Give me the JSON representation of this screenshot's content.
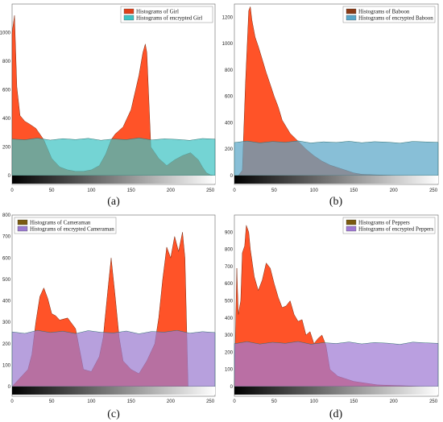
{
  "chart_data": [
    {
      "type": "area",
      "caption": "(a)",
      "xlim": [
        0,
        256
      ],
      "ylim": [
        0,
        1200
      ],
      "xticks": [
        0,
        50,
        100,
        150,
        200,
        250
      ],
      "yticks": [
        0,
        200,
        400,
        600,
        800,
        1000
      ],
      "legend_placement": "top-right",
      "series": [
        {
          "name": "Histograms of Girl",
          "color": "#ff4a1c",
          "x": [
            0,
            3,
            6,
            10,
            16,
            22,
            30,
            40,
            50,
            60,
            70,
            80,
            90,
            100,
            110,
            118,
            125,
            130,
            140,
            150,
            160,
            165,
            168,
            170,
            175,
            185,
            195,
            205,
            215,
            225,
            235,
            240,
            245,
            250,
            256
          ],
          "y": [
            1000,
            1120,
            620,
            420,
            380,
            360,
            330,
            250,
            120,
            60,
            40,
            30,
            30,
            40,
            70,
            150,
            250,
            290,
            340,
            460,
            700,
            860,
            920,
            860,
            200,
            120,
            70,
            110,
            140,
            160,
            110,
            60,
            20,
            5,
            0
          ]
        },
        {
          "name": "Histograms of encrypted Girl",
          "color": "#3ec4c4",
          "x": [
            0,
            16,
            32,
            48,
            64,
            80,
            96,
            112,
            128,
            144,
            160,
            176,
            192,
            208,
            224,
            240,
            256
          ],
          "y": [
            255,
            250,
            262,
            248,
            258,
            252,
            260,
            247,
            256,
            251,
            263,
            249,
            257,
            253,
            246,
            259,
            255
          ]
        }
      ]
    },
    {
      "type": "area",
      "caption": "(b)",
      "xlim": [
        0,
        256
      ],
      "ylim": [
        0,
        1300
      ],
      "xticks": [
        0,
        50,
        100,
        150,
        200,
        250
      ],
      "yticks": [
        0,
        200,
        400,
        600,
        800,
        1000,
        1200
      ],
      "legend_placement": "top-right",
      "series": [
        {
          "name": "Histograms of Baboon",
          "color": "#ff4a1c",
          "x": [
            0,
            5,
            10,
            14,
            18,
            20,
            22,
            26,
            30,
            35,
            40,
            45,
            50,
            55,
            60,
            70,
            80,
            90,
            100,
            110,
            120,
            130,
            140,
            150,
            160,
            180,
            200,
            220,
            240,
            256
          ],
          "y": [
            0,
            0,
            40,
            700,
            1250,
            1280,
            1180,
            1050,
            980,
            880,
            780,
            690,
            600,
            520,
            420,
            320,
            260,
            200,
            150,
            110,
            80,
            60,
            40,
            20,
            10,
            5,
            2,
            0,
            0,
            0
          ]
        },
        {
          "name": "Histograms of encrypted Baboon",
          "color": "#5aa6c8",
          "x": [
            0,
            16,
            32,
            48,
            64,
            80,
            96,
            112,
            128,
            144,
            160,
            176,
            192,
            208,
            224,
            240,
            256
          ],
          "y": [
            250,
            262,
            248,
            258,
            252,
            263,
            247,
            256,
            251,
            260,
            249,
            257,
            253,
            246,
            259,
            255,
            252
          ]
        }
      ]
    },
    {
      "type": "area",
      "caption": "(c)",
      "xlim": [
        0,
        256
      ],
      "ylim": [
        0,
        800
      ],
      "xticks": [
        0,
        50,
        100,
        150,
        200,
        250
      ],
      "yticks": [
        0,
        100,
        200,
        300,
        400,
        500,
        600,
        700,
        800
      ],
      "legend_placement": "top-left",
      "series": [
        {
          "name": "Histograms of Cameraman",
          "color": "#ff4a1c",
          "x": [
            0,
            10,
            20,
            25,
            30,
            35,
            40,
            45,
            50,
            55,
            60,
            70,
            80,
            90,
            100,
            110,
            115,
            120,
            125,
            130,
            135,
            140,
            150,
            160,
            170,
            180,
            185,
            190,
            195,
            200,
            205,
            210,
            215,
            218,
            222,
            230,
            245,
            256
          ],
          "y": [
            0,
            40,
            80,
            150,
            300,
            420,
            460,
            410,
            340,
            330,
            310,
            320,
            270,
            80,
            70,
            140,
            230,
            420,
            600,
            420,
            230,
            120,
            80,
            60,
            120,
            200,
            320,
            500,
            650,
            600,
            700,
            630,
            720,
            600,
            0,
            0,
            0,
            0
          ]
        },
        {
          "name": "Histograms of encrypted Cameraman",
          "color": "#9b7bd0",
          "x": [
            0,
            16,
            32,
            48,
            64,
            80,
            96,
            112,
            128,
            144,
            160,
            176,
            192,
            208,
            224,
            240,
            256
          ],
          "y": [
            255,
            248,
            262,
            252,
            258,
            247,
            261,
            253,
            250,
            259,
            246,
            257,
            254,
            262,
            249,
            256,
            252
          ]
        }
      ]
    },
    {
      "type": "area",
      "caption": "(d)",
      "xlim": [
        0,
        256
      ],
      "ylim": [
        0,
        1000
      ],
      "xticks": [
        0,
        50,
        100,
        150,
        200,
        250
      ],
      "yticks": [
        0,
        100,
        200,
        300,
        400,
        500,
        600,
        700,
        800,
        900
      ],
      "legend_placement": "top-right",
      "series": [
        {
          "name": "Histograms of Peppers",
          "color": "#ff4a1c",
          "x": [
            0,
            3,
            5,
            8,
            10,
            13,
            15,
            18,
            20,
            25,
            30,
            35,
            40,
            45,
            50,
            55,
            60,
            65,
            70,
            75,
            80,
            85,
            90,
            95,
            100,
            105,
            110,
            115,
            120,
            130,
            150,
            180,
            210,
            240,
            256
          ],
          "y": [
            0,
            690,
            420,
            500,
            780,
            820,
            940,
            900,
            800,
            640,
            560,
            620,
            720,
            690,
            600,
            520,
            460,
            470,
            500,
            420,
            380,
            390,
            300,
            320,
            250,
            280,
            300,
            240,
            100,
            60,
            30,
            10,
            5,
            0,
            0
          ]
        },
        {
          "name": "Histograms of encrypted Peppers",
          "color": "#a07ad4",
          "x": [
            0,
            16,
            32,
            48,
            64,
            80,
            96,
            112,
            128,
            144,
            160,
            176,
            192,
            208,
            224,
            240,
            256
          ],
          "y": [
            250,
            262,
            248,
            258,
            252,
            263,
            247,
            256,
            251,
            260,
            249,
            257,
            253,
            246,
            259,
            255,
            252
          ]
        }
      ]
    }
  ]
}
